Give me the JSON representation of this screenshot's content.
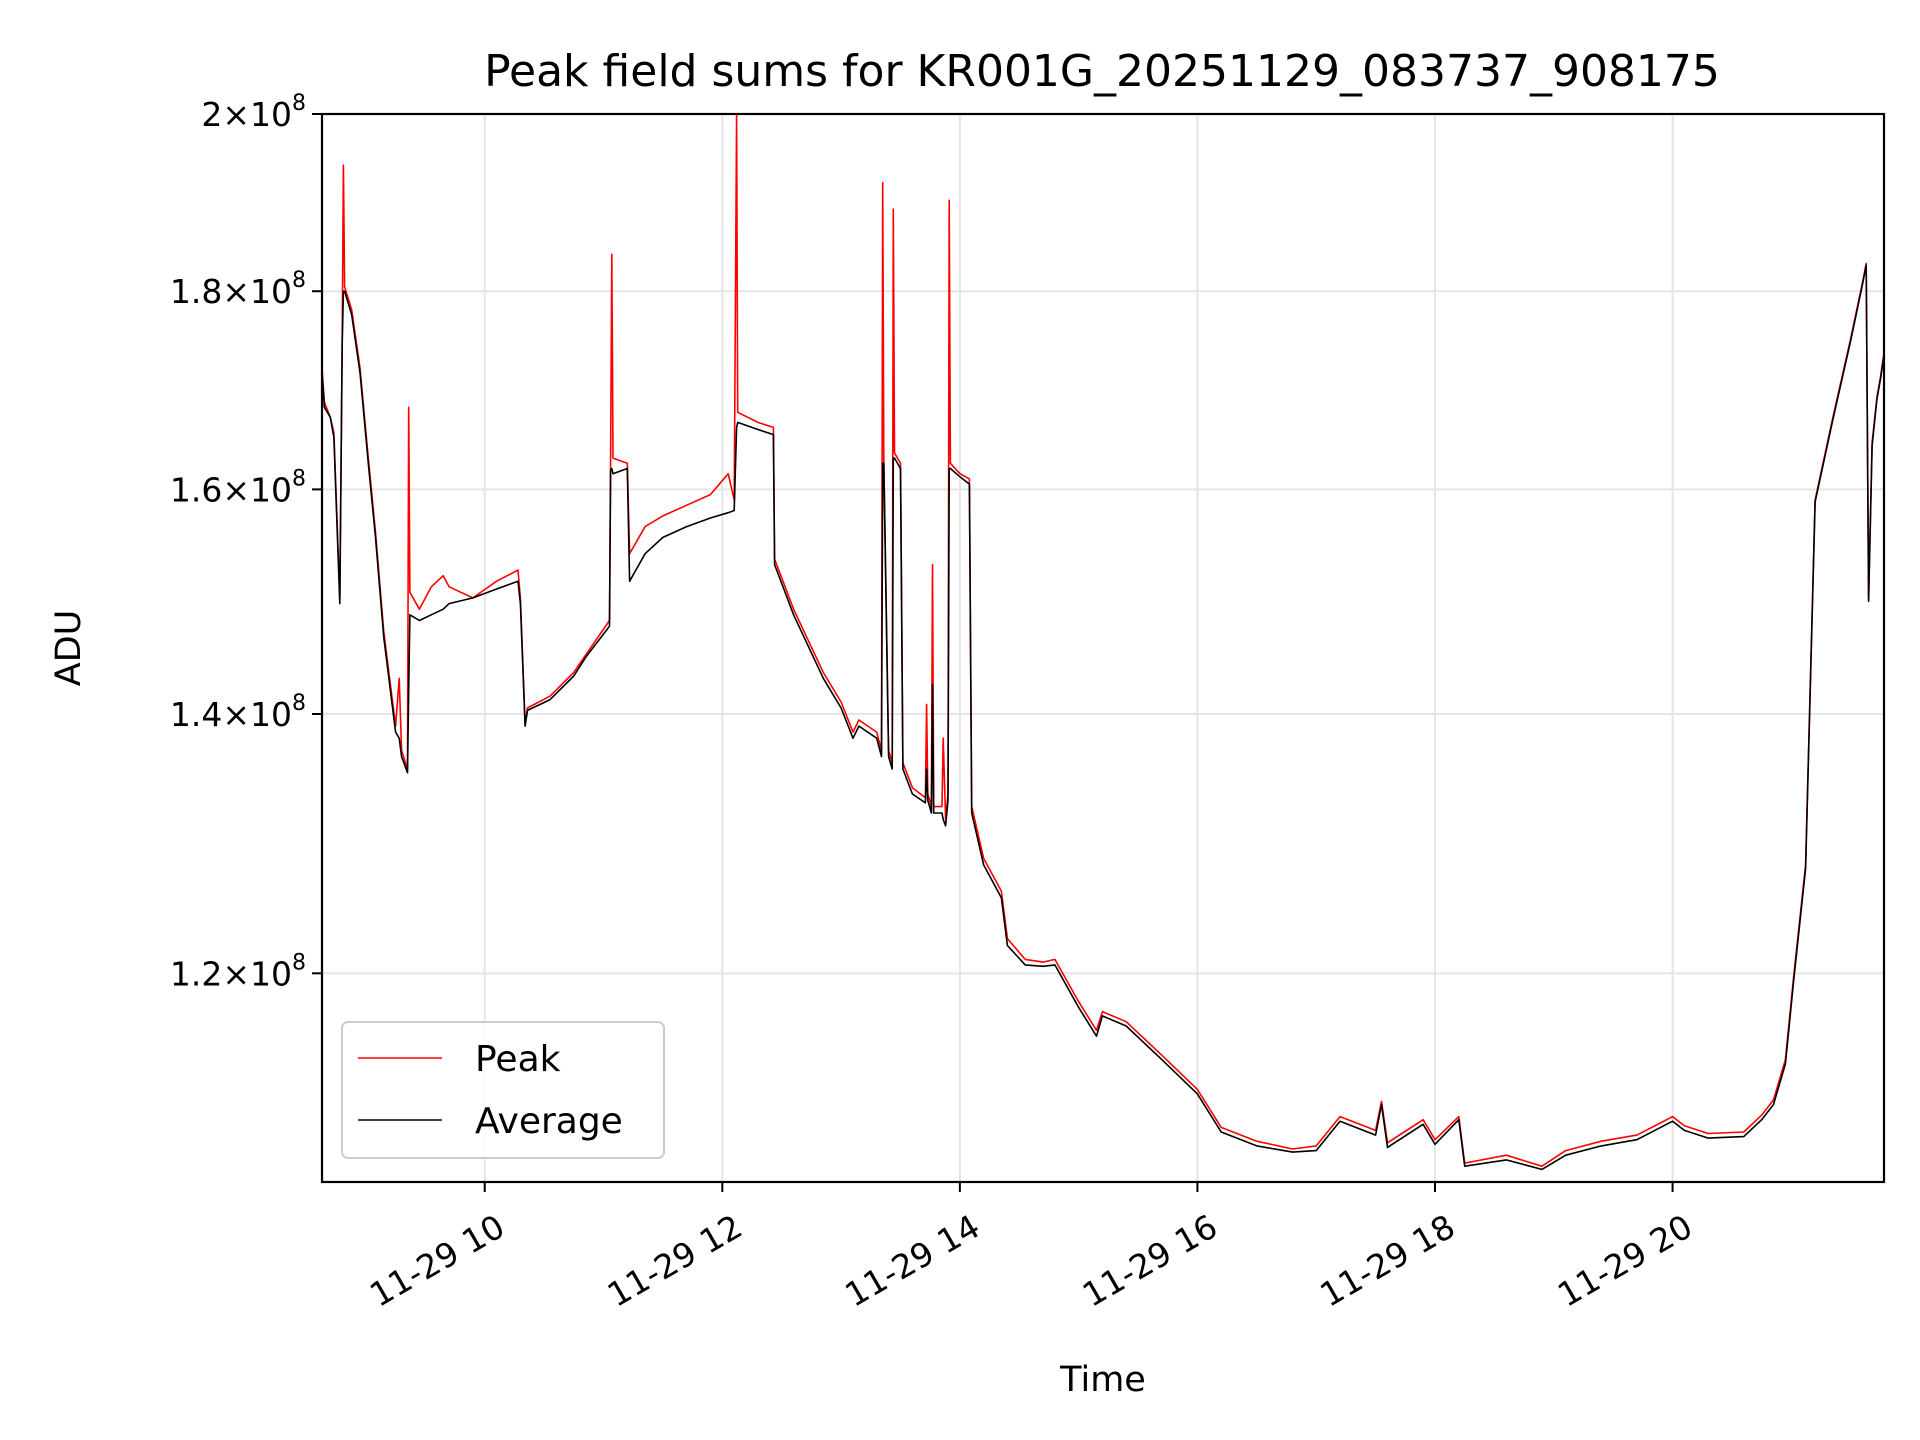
{
  "chart_data": {
    "type": "line",
    "title": "Peak field sums for KR001G_20251129_083737_908175",
    "xlabel": "Time",
    "ylabel": "ADU",
    "x_unit": "hour of day on 2025-11-29",
    "xlim": [
      8.63,
      21.78
    ],
    "ylim": [
      106000000,
      200000000
    ],
    "yscale": "log",
    "grid": true,
    "legend_position": "lower-left",
    "x_ticks": [
      {
        "value": 10,
        "label": "11-29 10"
      },
      {
        "value": 12,
        "label": "11-29 12"
      },
      {
        "value": 14,
        "label": "11-29 14"
      },
      {
        "value": 16,
        "label": "11-29 16"
      },
      {
        "value": 18,
        "label": "11-29 18"
      },
      {
        "value": 20,
        "label": "11-29 20"
      }
    ],
    "y_ticks": [
      {
        "value": 120000000,
        "mantissa": "1.2",
        "base": "10",
        "exp": "8"
      },
      {
        "value": 140000000,
        "mantissa": "1.4",
        "base": "10",
        "exp": "8"
      },
      {
        "value": 160000000,
        "mantissa": "1.6",
        "base": "10",
        "exp": "8"
      },
      {
        "value": 180000000,
        "mantissa": "1.8",
        "base": "10",
        "exp": "8"
      },
      {
        "value": 200000000,
        "mantissa": "2",
        "base": "10",
        "exp": "8"
      }
    ],
    "series": [
      {
        "name": "Peak",
        "color": "#ff0000",
        "points": [
          [
            8.63,
            172000000
          ],
          [
            8.65,
            168500000
          ],
          [
            8.7,
            167000000
          ],
          [
            8.73,
            165500000
          ],
          [
            8.78,
            150000000
          ],
          [
            8.8,
            175000000
          ],
          [
            8.81,
            194000000
          ],
          [
            8.82,
            180500000
          ],
          [
            8.88,
            178000000
          ],
          [
            8.95,
            172000000
          ],
          [
            9.02,
            163000000
          ],
          [
            9.08,
            156000000
          ],
          [
            9.15,
            147000000
          ],
          [
            9.25,
            139000000
          ],
          [
            9.28,
            143000000
          ],
          [
            9.3,
            137000000
          ],
          [
            9.35,
            135500000
          ],
          [
            9.36,
            168000000
          ],
          [
            9.37,
            150500000
          ],
          [
            9.45,
            149000000
          ],
          [
            9.55,
            151000000
          ],
          [
            9.65,
            152000000
          ],
          [
            9.7,
            151000000
          ],
          [
            9.9,
            150000000
          ],
          [
            10.1,
            151500000
          ],
          [
            10.28,
            152500000
          ],
          [
            10.3,
            150000000
          ],
          [
            10.34,
            139200000
          ],
          [
            10.36,
            140500000
          ],
          [
            10.55,
            141500000
          ],
          [
            10.75,
            143500000
          ],
          [
            10.85,
            145000000
          ],
          [
            11.05,
            148000000
          ],
          [
            11.06,
            163000000
          ],
          [
            11.07,
            184000000
          ],
          [
            11.08,
            163000000
          ],
          [
            11.2,
            162500000
          ],
          [
            11.22,
            154000000
          ],
          [
            11.35,
            156500000
          ],
          [
            11.5,
            157500000
          ],
          [
            11.7,
            158500000
          ],
          [
            11.9,
            159500000
          ],
          [
            12.05,
            161500000
          ],
          [
            12.1,
            159000000
          ],
          [
            12.12,
            200000000
          ],
          [
            12.13,
            167500000
          ],
          [
            12.3,
            166500000
          ],
          [
            12.43,
            166000000
          ],
          [
            12.44,
            153500000
          ],
          [
            12.6,
            149000000
          ],
          [
            12.85,
            143500000
          ],
          [
            13.0,
            141000000
          ],
          [
            13.1,
            138500000
          ],
          [
            13.15,
            139500000
          ],
          [
            13.3,
            138500000
          ],
          [
            13.34,
            137000000
          ],
          [
            13.35,
            192000000
          ],
          [
            13.36,
            163000000
          ],
          [
            13.4,
            137000000
          ],
          [
            13.43,
            136000000
          ],
          [
            13.44,
            189000000
          ],
          [
            13.45,
            163500000
          ],
          [
            13.5,
            162500000
          ],
          [
            13.52,
            136000000
          ],
          [
            13.6,
            134000000
          ],
          [
            13.71,
            133200000
          ],
          [
            13.72,
            140800000
          ],
          [
            13.73,
            133500000
          ],
          [
            13.76,
            132500000
          ],
          [
            13.77,
            153000000
          ],
          [
            13.78,
            132500000
          ],
          [
            13.85,
            132500000
          ],
          [
            13.86,
            138000000
          ],
          [
            13.88,
            131500000
          ],
          [
            13.9,
            133500000
          ],
          [
            13.91,
            190000000
          ],
          [
            13.92,
            162500000
          ],
          [
            14.0,
            161500000
          ],
          [
            14.08,
            161000000
          ],
          [
            14.1,
            132500000
          ],
          [
            14.2,
            128500000
          ],
          [
            14.35,
            126000000
          ],
          [
            14.4,
            122500000
          ],
          [
            14.55,
            121000000
          ],
          [
            14.7,
            120800000
          ],
          [
            14.8,
            121000000
          ],
          [
            15.0,
            118000000
          ],
          [
            15.15,
            116000000
          ],
          [
            15.2,
            117300000
          ],
          [
            15.4,
            116600000
          ],
          [
            15.7,
            114300000
          ],
          [
            16.0,
            112000000
          ],
          [
            16.2,
            109500000
          ],
          [
            16.5,
            108600000
          ],
          [
            16.8,
            108100000
          ],
          [
            17.0,
            108300000
          ],
          [
            17.2,
            110200000
          ],
          [
            17.5,
            109300000
          ],
          [
            17.55,
            111200000
          ],
          [
            17.6,
            108500000
          ],
          [
            17.9,
            110000000
          ],
          [
            18.0,
            108700000
          ],
          [
            18.2,
            110200000
          ],
          [
            18.25,
            107200000
          ],
          [
            18.6,
            107700000
          ],
          [
            18.9,
            107000000
          ],
          [
            19.1,
            108000000
          ],
          [
            19.4,
            108600000
          ],
          [
            19.7,
            109000000
          ],
          [
            20.0,
            110200000
          ],
          [
            20.1,
            109600000
          ],
          [
            20.3,
            109100000
          ],
          [
            20.6,
            109200000
          ],
          [
            20.75,
            110300000
          ],
          [
            20.85,
            111300000
          ],
          [
            20.95,
            114000000
          ],
          [
            21.02,
            119800000
          ],
          [
            21.12,
            128000000
          ],
          [
            21.2,
            159000000
          ],
          [
            21.35,
            167000000
          ],
          [
            21.5,
            175000000
          ],
          [
            21.6,
            181000000
          ],
          [
            21.63,
            183000000
          ],
          [
            21.65,
            150000000
          ],
          [
            21.68,
            164500000
          ],
          [
            21.72,
            169000000
          ],
          [
            21.75,
            171000000
          ],
          [
            21.78,
            173500000
          ]
        ]
      },
      {
        "name": "Average",
        "color": "#000000",
        "points": [
          [
            8.63,
            171500000
          ],
          [
            8.65,
            168000000
          ],
          [
            8.7,
            167000000
          ],
          [
            8.73,
            165000000
          ],
          [
            8.78,
            149500000
          ],
          [
            8.8,
            174500000
          ],
          [
            8.81,
            180000000
          ],
          [
            8.82,
            180000000
          ],
          [
            8.88,
            177500000
          ],
          [
            8.95,
            171500000
          ],
          [
            9.02,
            162500000
          ],
          [
            9.08,
            155500000
          ],
          [
            9.15,
            146500000
          ],
          [
            9.25,
            138500000
          ],
          [
            9.28,
            138000000
          ],
          [
            9.3,
            136500000
          ],
          [
            9.35,
            135200000
          ],
          [
            9.36,
            142000000
          ],
          [
            9.37,
            148500000
          ],
          [
            9.45,
            148000000
          ],
          [
            9.55,
            148500000
          ],
          [
            9.65,
            149000000
          ],
          [
            9.7,
            149500000
          ],
          [
            9.9,
            150000000
          ],
          [
            10.1,
            150800000
          ],
          [
            10.28,
            151500000
          ],
          [
            10.3,
            149500000
          ],
          [
            10.34,
            139000000
          ],
          [
            10.36,
            140300000
          ],
          [
            10.55,
            141200000
          ],
          [
            10.75,
            143200000
          ],
          [
            10.85,
            144800000
          ],
          [
            11.05,
            147500000
          ],
          [
            11.06,
            161800000
          ],
          [
            11.07,
            162000000
          ],
          [
            11.08,
            161500000
          ],
          [
            11.2,
            162000000
          ],
          [
            11.22,
            151500000
          ],
          [
            11.35,
            154000000
          ],
          [
            11.5,
            155500000
          ],
          [
            11.7,
            156500000
          ],
          [
            11.9,
            157300000
          ],
          [
            12.05,
            157800000
          ],
          [
            12.1,
            158000000
          ],
          [
            12.12,
            166000000
          ],
          [
            12.13,
            166500000
          ],
          [
            12.3,
            165800000
          ],
          [
            12.43,
            165300000
          ],
          [
            12.44,
            153000000
          ],
          [
            12.6,
            148500000
          ],
          [
            12.85,
            143000000
          ],
          [
            13.0,
            140500000
          ],
          [
            13.1,
            138000000
          ],
          [
            13.15,
            139000000
          ],
          [
            13.3,
            138000000
          ],
          [
            13.34,
            136500000
          ],
          [
            13.35,
            162500000
          ],
          [
            13.36,
            162500000
          ],
          [
            13.4,
            136500000
          ],
          [
            13.43,
            135500000
          ],
          [
            13.44,
            163000000
          ],
          [
            13.45,
            163000000
          ],
          [
            13.5,
            162000000
          ],
          [
            13.52,
            135500000
          ],
          [
            13.6,
            133500000
          ],
          [
            13.71,
            132800000
          ],
          [
            13.72,
            135500000
          ],
          [
            13.73,
            133000000
          ],
          [
            13.76,
            132000000
          ],
          [
            13.77,
            142500000
          ],
          [
            13.78,
            132000000
          ],
          [
            13.85,
            132000000
          ],
          [
            13.86,
            131500000
          ],
          [
            13.88,
            131000000
          ],
          [
            13.9,
            133000000
          ],
          [
            13.91,
            162000000
          ],
          [
            13.92,
            162000000
          ],
          [
            14.0,
            161200000
          ],
          [
            14.08,
            160500000
          ],
          [
            14.1,
            132000000
          ],
          [
            14.2,
            128000000
          ],
          [
            14.35,
            125500000
          ],
          [
            14.4,
            122000000
          ],
          [
            14.55,
            120600000
          ],
          [
            14.7,
            120500000
          ],
          [
            14.8,
            120600000
          ],
          [
            15.0,
            117600000
          ],
          [
            15.15,
            115600000
          ],
          [
            15.2,
            117000000
          ],
          [
            15.4,
            116300000
          ],
          [
            15.7,
            114000000
          ],
          [
            16.0,
            111700000
          ],
          [
            16.2,
            109200000
          ],
          [
            16.5,
            108300000
          ],
          [
            16.8,
            107900000
          ],
          [
            17.0,
            108000000
          ],
          [
            17.2,
            109900000
          ],
          [
            17.5,
            109000000
          ],
          [
            17.55,
            111000000
          ],
          [
            17.6,
            108200000
          ],
          [
            17.9,
            109700000
          ],
          [
            18.0,
            108400000
          ],
          [
            18.2,
            110000000
          ],
          [
            18.25,
            107000000
          ],
          [
            18.6,
            107400000
          ],
          [
            18.9,
            106800000
          ],
          [
            19.1,
            107700000
          ],
          [
            19.4,
            108300000
          ],
          [
            19.7,
            108700000
          ],
          [
            20.0,
            109900000
          ],
          [
            20.1,
            109300000
          ],
          [
            20.3,
            108800000
          ],
          [
            20.6,
            108900000
          ],
          [
            20.75,
            110000000
          ],
          [
            20.85,
            111000000
          ],
          [
            20.95,
            113700000
          ],
          [
            21.02,
            119500000
          ],
          [
            21.12,
            127700000
          ],
          [
            21.2,
            158800000
          ],
          [
            21.35,
            166800000
          ],
          [
            21.5,
            174800000
          ],
          [
            21.6,
            180800000
          ],
          [
            21.63,
            182800000
          ],
          [
            21.65,
            149700000
          ],
          [
            21.68,
            164200000
          ],
          [
            21.72,
            168800000
          ],
          [
            21.75,
            170800000
          ],
          [
            21.78,
            173300000
          ]
        ]
      }
    ]
  }
}
